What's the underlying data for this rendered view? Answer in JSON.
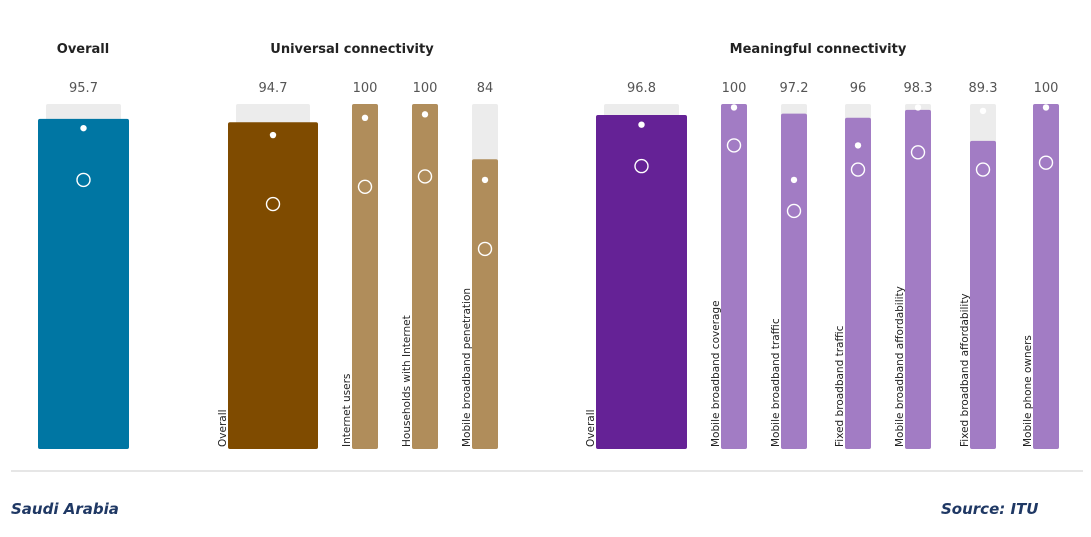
{
  "chart_data": {
    "type": "bar",
    "ylim": [
      0,
      100
    ],
    "groups": [
      {
        "title": "Overall",
        "bars": [
          {
            "label": "",
            "value": 95.7,
            "color": "#0076a3",
            "dot": 93,
            "circle": 78
          }
        ]
      },
      {
        "title": "Universal connectivity",
        "bars": [
          {
            "label": "Overall",
            "value": 94.7,
            "color": "#7f4b00",
            "dot": 91,
            "circle": 71
          },
          {
            "label": "Internet users",
            "value": "100",
            "color": "#b08d5b",
            "dot": 96,
            "circle": 76
          },
          {
            "label": "Households with Internet",
            "value": "100",
            "color": "#b08d5b",
            "dot": 97,
            "circle": 79
          },
          {
            "label": "Mobile broadband penetration",
            "value": 84,
            "color": "#b08d5b",
            "dot": 78,
            "circle": 58
          }
        ]
      },
      {
        "title": "Meaningful connectivity",
        "bars": [
          {
            "label": "Overall",
            "value": 96.8,
            "color": "#652296",
            "dot": 94,
            "circle": 82
          },
          {
            "label": "Mobile broadband coverage",
            "value": "100",
            "color": "#a27cc4",
            "dot": 99,
            "circle": 88
          },
          {
            "label": "Mobile broadband traffic",
            "value": 97.2,
            "color": "#a27cc4",
            "dot": 78,
            "circle": 69
          },
          {
            "label": "Fixed broadband traffic",
            "value": "96",
            "color": "#a27cc4",
            "dot": 88,
            "circle": 81
          },
          {
            "label": "Mobile broadband affordability",
            "value": 98.3,
            "color": "#a27cc4",
            "dot": 99,
            "circle": 86
          },
          {
            "label": "Fixed broadband affordability",
            "value": 89.3,
            "color": "#a27cc4",
            "dot": 98,
            "circle": 81
          },
          {
            "label": "Mobile phone owners",
            "value": "100",
            "color": "#a27cc4",
            "dot": 99,
            "circle": 83
          }
        ]
      }
    ]
  },
  "footer": {
    "country": "Saudi Arabia",
    "source": "Source: ITU"
  },
  "colors": {
    "track": "#ececec",
    "divider": "#cccccc",
    "footer_text": "#1f3864"
  }
}
